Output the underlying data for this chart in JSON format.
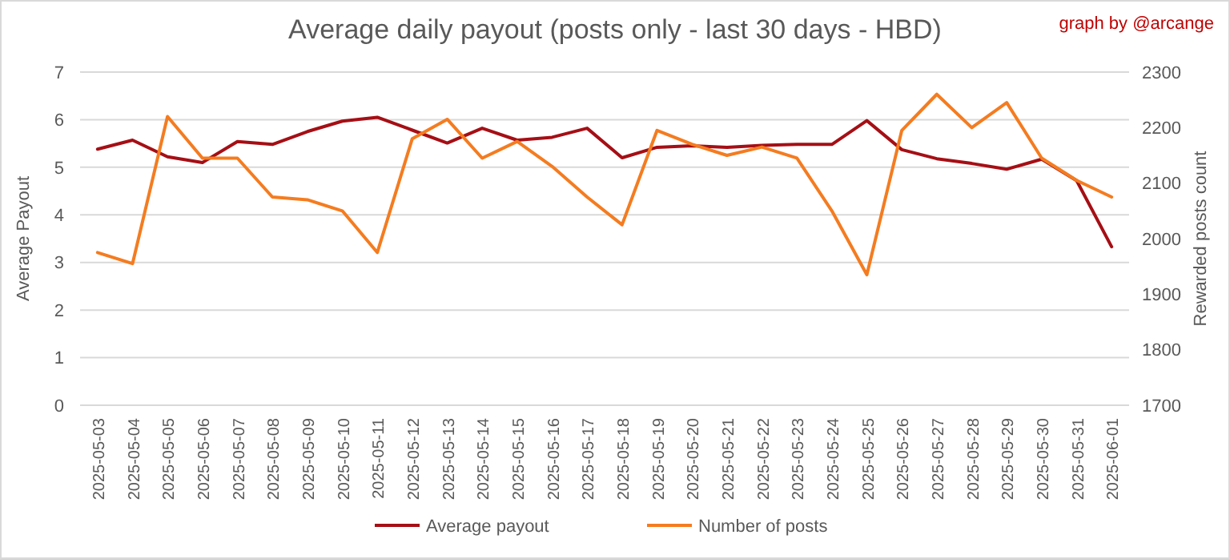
{
  "chart_data": {
    "type": "line",
    "title": "Average daily payout (posts only - last 30 days - HBD)",
    "ylabel": "Average Payout",
    "y2label": "Rewarded posts count",
    "annotations": [
      "graph by @arcange"
    ],
    "categories": [
      "2025-05-03",
      "2025-05-04",
      "2025-05-05",
      "2025-05-06",
      "2025-05-07",
      "2025-05-08",
      "2025-05-09",
      "2025-05-10",
      "2025-05-11",
      "2025-05-12",
      "2025-05-13",
      "2025-05-14",
      "2025-05-15",
      "2025-05-16",
      "2025-05-17",
      "2025-05-18",
      "2025-05-19",
      "2025-05-20",
      "2025-05-21",
      "2025-05-22",
      "2025-05-23",
      "2025-05-24",
      "2025-05-25",
      "2025-05-26",
      "2025-05-27",
      "2025-05-28",
      "2025-05-29",
      "2025-05-30",
      "2025-05-31",
      "2025-06-01"
    ],
    "series": [
      {
        "name": "Average payout",
        "color": "#a50f15",
        "values": [
          5.38,
          5.57,
          5.22,
          5.1,
          5.54,
          5.48,
          5.75,
          5.97,
          6.05,
          5.78,
          5.51,
          5.82,
          5.57,
          5.63,
          5.82,
          5.2,
          5.42,
          5.45,
          5.42,
          5.46,
          5.48,
          5.48,
          5.98,
          5.37,
          5.18,
          5.08,
          4.96,
          5.17,
          4.72,
          3.33
        ]
      },
      {
        "name": "Number of posts",
        "color": "#f47c20",
        "axis": "y2",
        "values": [
          1975,
          1955,
          2220,
          2145,
          2145,
          2075,
          2070,
          2050,
          1975,
          2180,
          2215,
          2145,
          2175,
          2130,
          2075,
          2025,
          2195,
          2170,
          2150,
          2165,
          2145,
          2050,
          1935,
          2195,
          2260,
          2200,
          2245,
          2145,
          2105,
          2075
        ]
      }
    ],
    "ylim": [
      0,
      7
    ],
    "yticks": [
      0,
      1,
      2,
      3,
      4,
      5,
      6,
      7
    ],
    "y2lim": [
      1700,
      2300
    ],
    "y2ticks": [
      1700,
      1800,
      1900,
      2000,
      2100,
      2200,
      2300
    ],
    "grid": "y",
    "legend": "bottom",
    "line_style": "solid",
    "marker": "none"
  }
}
